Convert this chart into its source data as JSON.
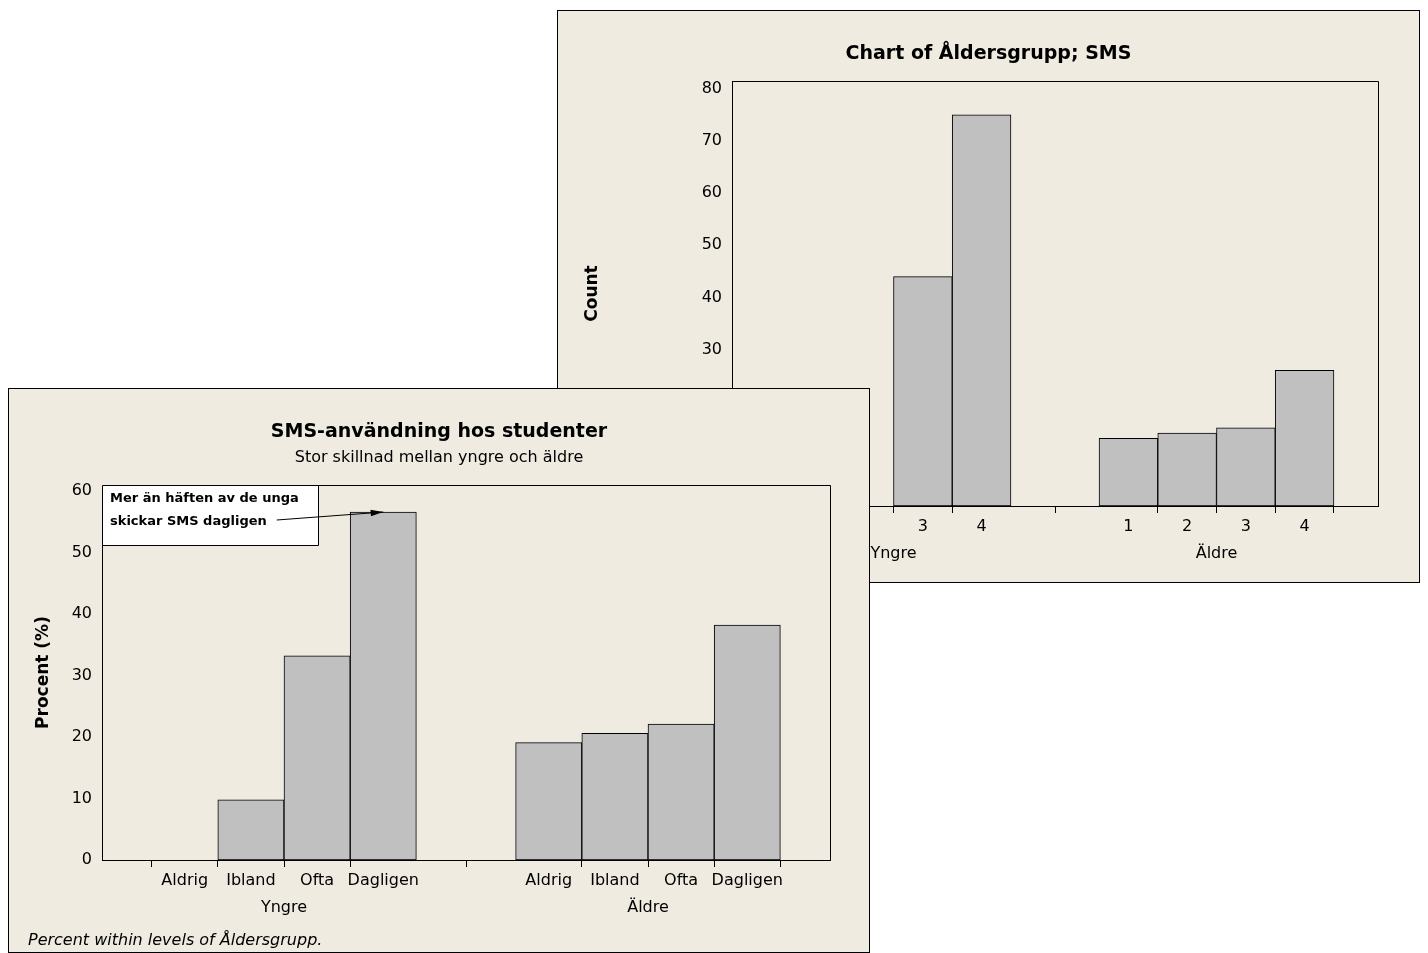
{
  "chart_data": [
    {
      "type": "bar",
      "title": "Chart of Åldersgrupp; SMS",
      "ylabel": "Count",
      "categories": [
        null,
        null,
        "3",
        "4",
        "1",
        "2",
        "3",
        "4"
      ],
      "values": [
        null,
        null,
        44,
        75,
        13,
        14,
        15,
        26
      ],
      "color": "#c0c0c0",
      "ylim": [
        0,
        81.5
      ],
      "yticks": [
        30,
        40,
        50,
        60,
        70,
        80
      ],
      "annotations": [
        "Yngre",
        "Äldre"
      ]
    },
    {
      "type": "bar",
      "title": "SMS-användning hos studenter",
      "subtitle": "Stor skillnad mellan yngre och äldre",
      "ylabel": "Procent (%)",
      "categories": [
        "Aldrig",
        "Ibland",
        "Ofta",
        "Dagligen",
        "Aldrig",
        "Ibland",
        "Ofta",
        "Dagligen"
      ],
      "values": [
        0,
        9.8,
        33.2,
        56.6,
        19.1,
        20.6,
        22.1,
        38.2
      ],
      "color": "#c0c0c0",
      "ylim": [
        0,
        61
      ],
      "yticks": [
        0,
        10,
        20,
        30,
        40,
        50,
        60
      ],
      "annotations": [
        "Yngre",
        "Äldre",
        {
          "text": "Mer än häften av de unga skickar SMS dagligen",
          "x": "Dagligen",
          "y": 56.6
        },
        "Percent within levels of Åldersgrupp."
      ]
    }
  ]
}
